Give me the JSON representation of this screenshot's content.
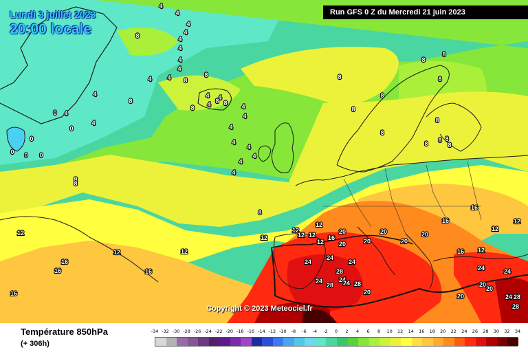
{
  "header": {
    "date": "Lundi 3 juillet 2023",
    "time": "20:00 locale",
    "run": "Run GFS 0 Z du Mercredi 21 juin 2023"
  },
  "copyright": "Copyright © 2023 Meteociel.fr",
  "footer": {
    "variable": "Température 850hPa",
    "lead": "(+ 306h)"
  },
  "scale": {
    "values": [
      "-34",
      "-32",
      "-30",
      "-28",
      "-26",
      "-24",
      "-22",
      "-20",
      "-18",
      "-16",
      "-14",
      "-12",
      "-10",
      "-8",
      "-6",
      "-4",
      "-2",
      "0",
      "2",
      "4",
      "6",
      "8",
      "10",
      "12",
      "14",
      "16",
      "18",
      "20",
      "22",
      "24",
      "26",
      "28",
      "30",
      "32",
      "34"
    ],
    "colors": [
      "#d8d8d8",
      "#b4b4b4",
      "#9a6aa6",
      "#825894",
      "#6a3a82",
      "#52206e",
      "#5e1a8e",
      "#7e2aac",
      "#a046c4",
      "#1a2ea0",
      "#2a4ed6",
      "#3c7af0",
      "#4aa6f0",
      "#50c8e8",
      "#6fd8f0",
      "#5ee8c8",
      "#4ad6a0",
      "#36c86a",
      "#5ad23a",
      "#86e63a",
      "#aaf03a",
      "#ccf23a",
      "#ecf23a",
      "#ffff40",
      "#ffe040",
      "#ffc640",
      "#ffaa30",
      "#ff8a1e",
      "#ff5a10",
      "#ff2a10",
      "#e01010",
      "#b00000",
      "#7a0000",
      "#460000"
    ]
  },
  "isotherm_labels": [
    {
      "text": "4"
    },
    {
      "text": "4"
    },
    {
      "text": "4"
    },
    {
      "text": "4"
    },
    {
      "text": "4"
    },
    {
      "text": "4"
    },
    {
      "text": "4"
    },
    {
      "text": "4"
    },
    {
      "text": "4"
    },
    {
      "text": "4"
    },
    {
      "text": "4"
    },
    {
      "text": "4"
    },
    {
      "text": "4"
    },
    {
      "text": "4"
    },
    {
      "text": "4"
    },
    {
      "text": "4"
    },
    {
      "text": "4"
    },
    {
      "text": "4"
    },
    {
      "text": "4"
    },
    {
      "text": "4"
    },
    {
      "text": "4"
    },
    {
      "text": "4"
    },
    {
      "text": "4"
    },
    {
      "text": "4"
    },
    {
      "text": "0"
    },
    {
      "text": "0"
    },
    {
      "text": "0"
    },
    {
      "text": "0"
    },
    {
      "text": "0"
    },
    {
      "text": "0"
    },
    {
      "text": "8"
    },
    {
      "text": "8"
    },
    {
      "text": "8"
    },
    {
      "text": "8"
    },
    {
      "text": "8"
    },
    {
      "text": "8"
    },
    {
      "text": "8"
    },
    {
      "text": "8"
    },
    {
      "text": "8"
    },
    {
      "text": "8"
    },
    {
      "text": "8"
    },
    {
      "text": "8"
    },
    {
      "text": "8"
    },
    {
      "text": "8"
    },
    {
      "text": "8"
    },
    {
      "text": "8"
    },
    {
      "text": "8"
    },
    {
      "text": "8"
    },
    {
      "text": "8"
    },
    {
      "text": "8"
    },
    {
      "text": "8"
    },
    {
      "text": "8"
    },
    {
      "text": "12"
    },
    {
      "text": "12"
    },
    {
      "text": "12"
    },
    {
      "text": "12"
    },
    {
      "text": "12"
    },
    {
      "text": "12"
    },
    {
      "text": "12"
    },
    {
      "text": "12"
    },
    {
      "text": "12"
    },
    {
      "text": "12"
    },
    {
      "text": "12"
    },
    {
      "text": "12"
    },
    {
      "text": "16"
    },
    {
      "text": "16"
    },
    {
      "text": "16"
    },
    {
      "text": "16"
    },
    {
      "text": "16"
    },
    {
      "text": "16"
    },
    {
      "text": "16"
    },
    {
      "text": "16"
    },
    {
      "text": "20"
    },
    {
      "text": "20"
    },
    {
      "text": "20"
    },
    {
      "text": "20"
    },
    {
      "text": "20"
    },
    {
      "text": "20"
    },
    {
      "text": "20"
    },
    {
      "text": "20"
    },
    {
      "text": "20"
    },
    {
      "text": "20"
    },
    {
      "text": "24"
    },
    {
      "text": "24"
    },
    {
      "text": "24"
    },
    {
      "text": "24"
    },
    {
      "text": "24"
    },
    {
      "text": "24"
    },
    {
      "text": "24"
    },
    {
      "text": "24"
    },
    {
      "text": "24"
    },
    {
      "text": "28"
    },
    {
      "text": "28"
    },
    {
      "text": "28"
    },
    {
      "text": "28"
    },
    {
      "text": "28"
    }
  ]
}
